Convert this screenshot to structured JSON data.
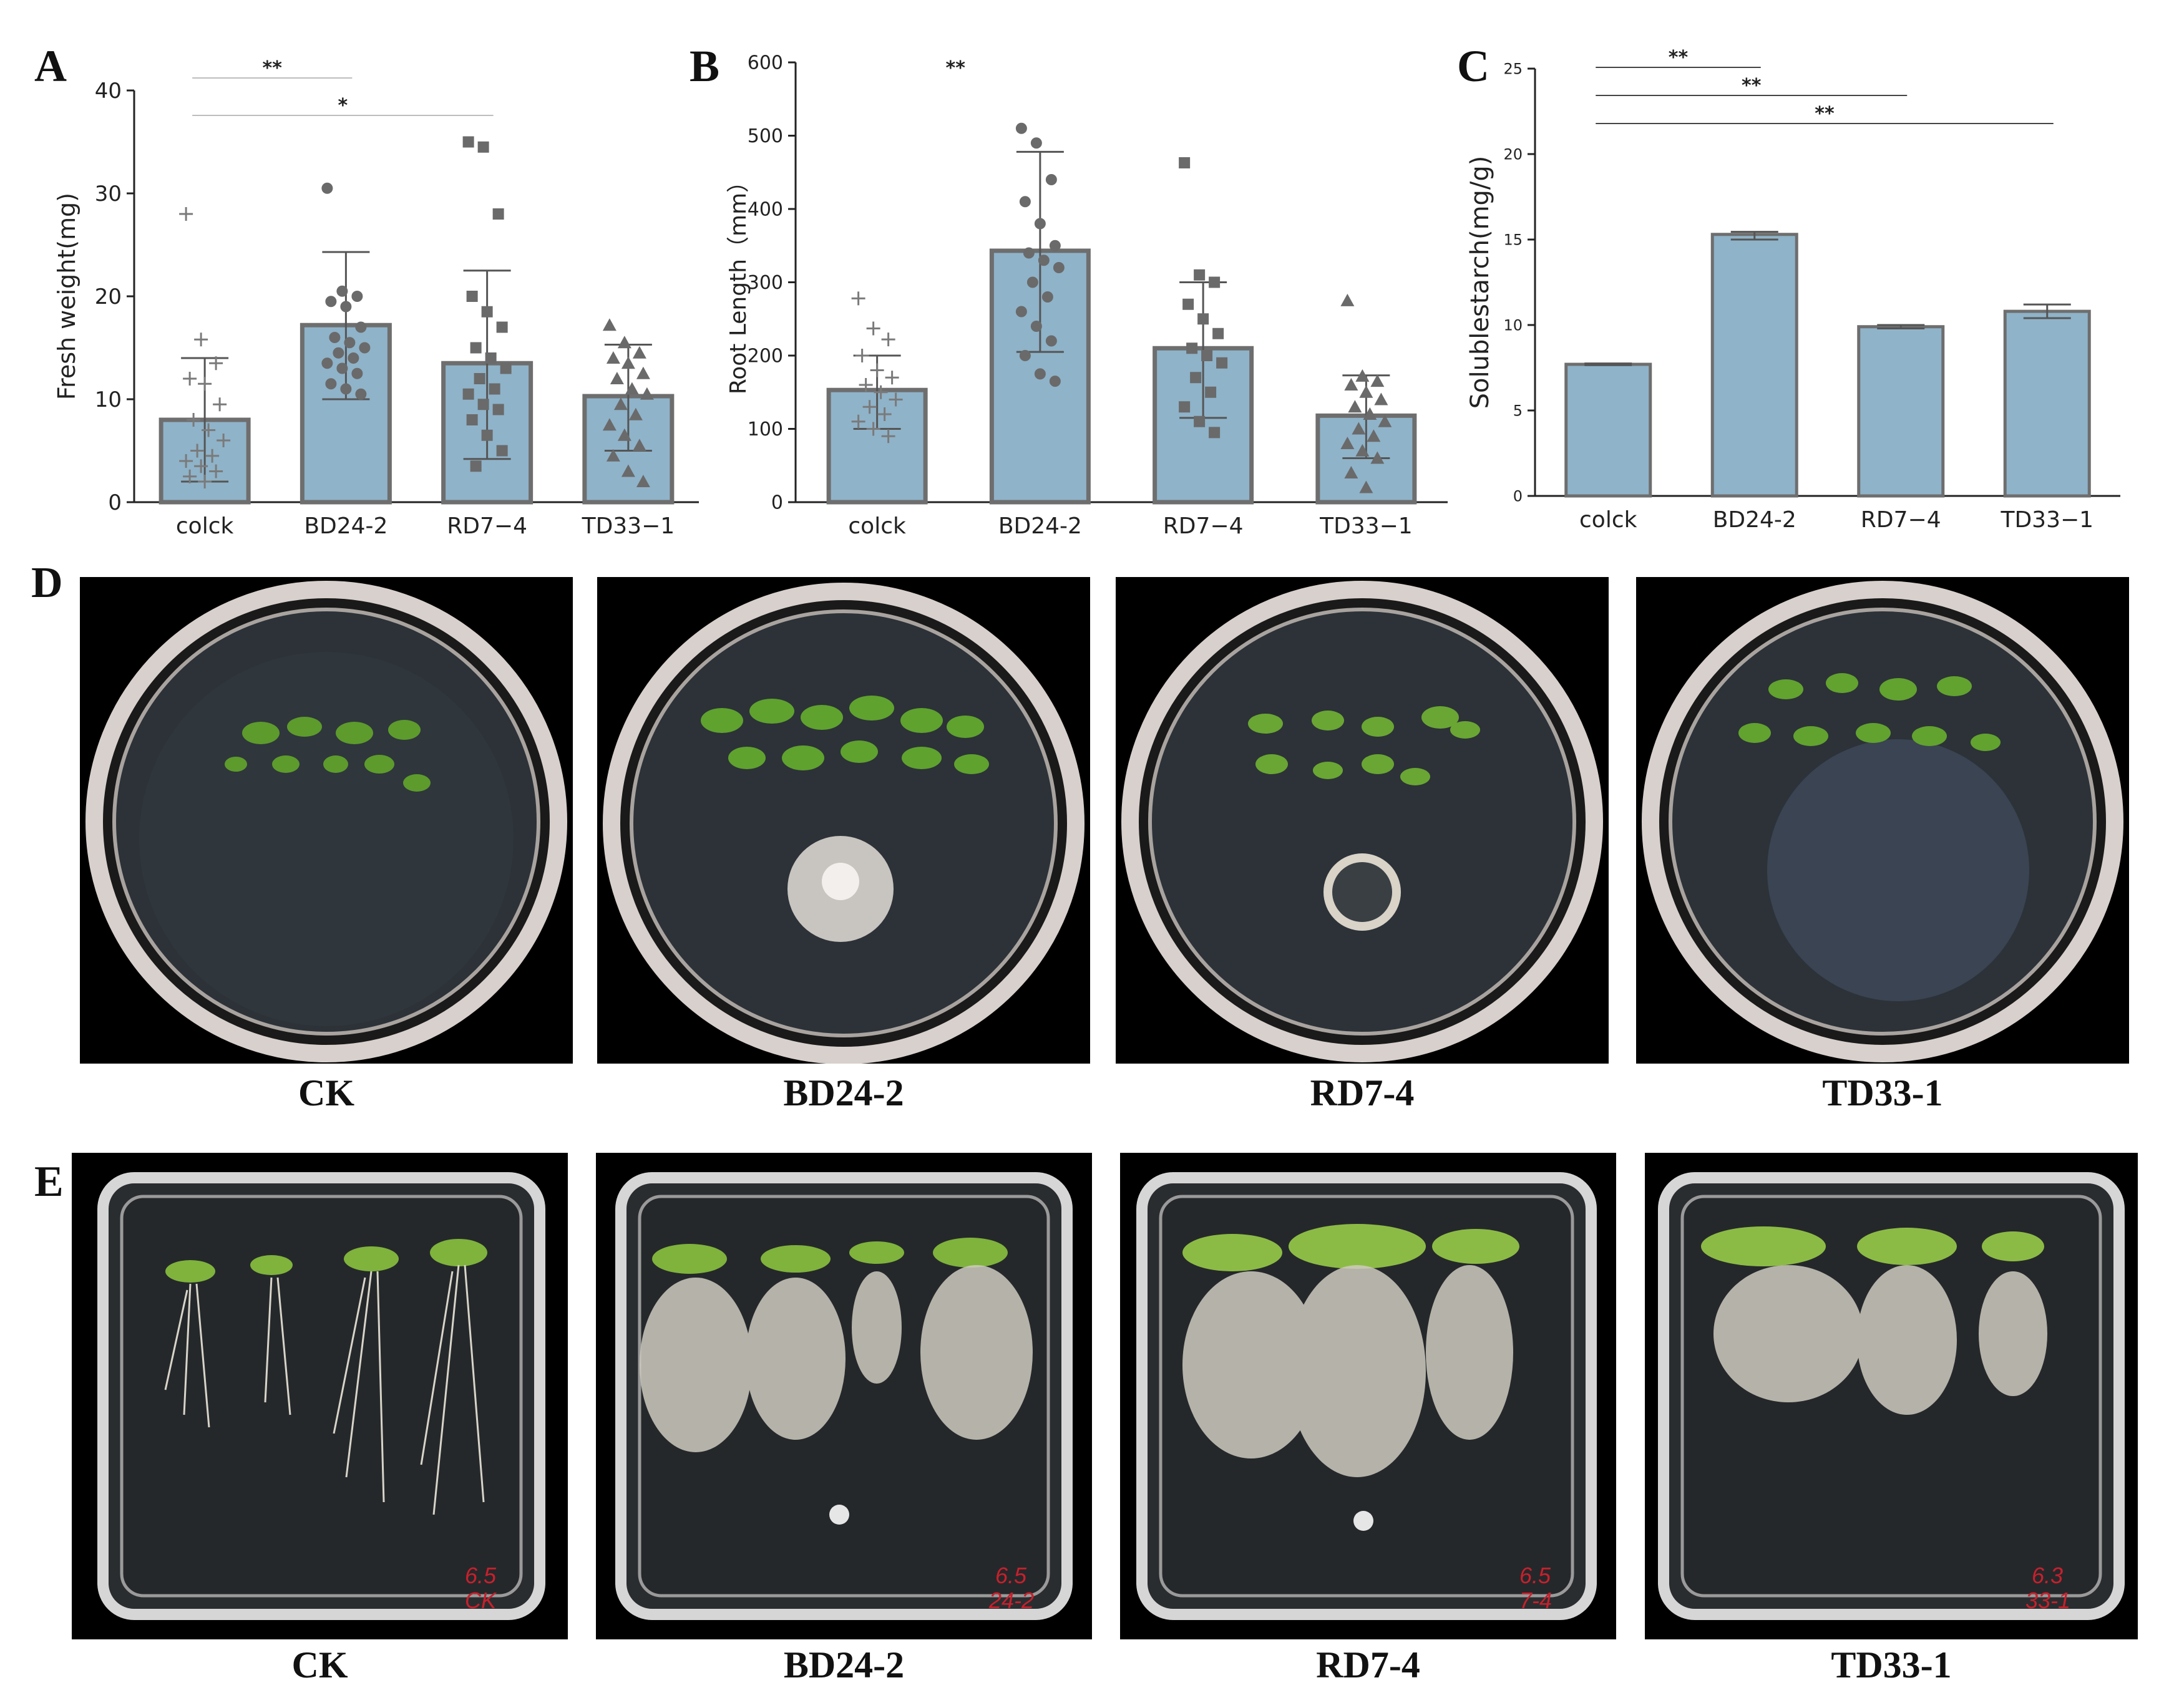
{
  "figure": {
    "panel_letters": {
      "a": "A",
      "b": "B",
      "c": "C",
      "d": "D",
      "e": "E"
    },
    "colors": {
      "bar_fill": "#8fb3c9",
      "bar_edge": "#6e6e6e",
      "marker": "#6a6a6a",
      "photo_bg": "#000000"
    }
  },
  "chart_data": [
    {
      "panel": "A",
      "type": "bar",
      "categories": [
        "colck",
        "BD24-2",
        "RD7−4",
        "TD33−1"
      ],
      "values": [
        8,
        17.2,
        13.5,
        10.3
      ],
      "error_upper": [
        14,
        24.3,
        22.5,
        15.3
      ],
      "error_lower": [
        2,
        10,
        4.2,
        5
      ],
      "ylabel": "Fresh weight(mg)",
      "ylim": [
        0,
        40
      ],
      "yticks": [
        0,
        10,
        20,
        30,
        40
      ],
      "marker_shapes": [
        "plus",
        "circle",
        "square",
        "triangle"
      ],
      "points": [
        [
          28,
          15.8,
          13.5,
          12,
          11.5,
          9.5,
          8,
          7,
          6,
          5,
          4.5,
          4,
          3.5,
          3,
          2.5,
          2
        ],
        [
          30.5,
          20.5,
          20,
          19.5,
          19,
          17,
          16,
          15.5,
          15,
          14.5,
          14,
          13.5,
          13,
          12.5,
          11.5,
          11,
          10.5
        ],
        [
          35,
          34.5,
          28,
          20,
          18.5,
          17,
          15,
          14,
          13,
          12,
          11,
          10.5,
          9.5,
          9,
          8,
          6.5,
          5,
          3.5
        ],
        [
          17.2,
          15.5,
          14.5,
          14,
          13.5,
          12.5,
          12,
          11,
          10.5,
          9.5,
          8.5,
          7.5,
          6.5,
          5.5,
          4.5,
          3,
          2
        ]
      ],
      "significance": [
        {
          "label": "**",
          "from": 0,
          "to": 1
        },
        {
          "label": "*",
          "from": 0,
          "to": 2
        }
      ]
    },
    {
      "panel": "B",
      "type": "bar",
      "categories": [
        "colck",
        "BD24-2",
        "RD7−4",
        "TD33−1"
      ],
      "values": [
        153,
        343,
        210,
        118
      ],
      "error_upper": [
        200,
        478,
        300,
        173
      ],
      "error_lower": [
        100,
        205,
        115,
        60
      ],
      "ylabel": "Root Length（mm）",
      "ylim": [
        0,
        600
      ],
      "yticks": [
        0,
        100,
        200,
        300,
        400,
        500,
        600
      ],
      "marker_shapes": [
        "plus",
        "circle",
        "square",
        "triangle"
      ],
      "points": [
        [
          278,
          237,
          222,
          200,
          180,
          170,
          160,
          150,
          140,
          130,
          120,
          110,
          100,
          90
        ],
        [
          510,
          490,
          440,
          410,
          380,
          350,
          340,
          330,
          320,
          300,
          280,
          260,
          240,
          220,
          200,
          175,
          165
        ],
        [
          463,
          310,
          300,
          270,
          250,
          230,
          210,
          200,
          190,
          170,
          150,
          130,
          110,
          95
        ],
        [
          275,
          172,
          165,
          160,
          150,
          140,
          130,
          120,
          110,
          100,
          90,
          80,
          70,
          60,
          40,
          20
        ]
      ],
      "significance": [
        {
          "label": "**",
          "from": 0,
          "to": 1,
          "no_line": true
        }
      ]
    },
    {
      "panel": "C",
      "type": "bar",
      "categories": [
        "colck",
        "BD24-2",
        "RD7−4",
        "TD33−1"
      ],
      "values": [
        7.7,
        15.3,
        9.9,
        10.8
      ],
      "error_upper": [
        7.75,
        15.45,
        10.0,
        11.2
      ],
      "error_lower": [
        7.65,
        15.0,
        9.8,
        10.4
      ],
      "ylabel": "Solublestarch(mg/g)",
      "ylim": [
        0,
        25
      ],
      "yticks": [
        0,
        5,
        10,
        15,
        20,
        25
      ],
      "significance": [
        {
          "label": "**",
          "from": 0,
          "to": 1
        },
        {
          "label": "**",
          "from": 0,
          "to": 2
        },
        {
          "label": "**",
          "from": 0,
          "to": 3
        }
      ]
    }
  ],
  "panel_d": {
    "captions": [
      "CK",
      "BD24-2",
      "RD7-4",
      "TD33-1"
    ]
  },
  "panel_e": {
    "captions": [
      "CK",
      "BD24-2",
      "RD7-4",
      "TD33-1"
    ],
    "plate_labels": [
      [
        "6.5",
        "CK"
      ],
      [
        "6.5",
        "24-2"
      ],
      [
        "6.5",
        "7-4"
      ],
      [
        "6.3",
        "33-1"
      ]
    ]
  }
}
